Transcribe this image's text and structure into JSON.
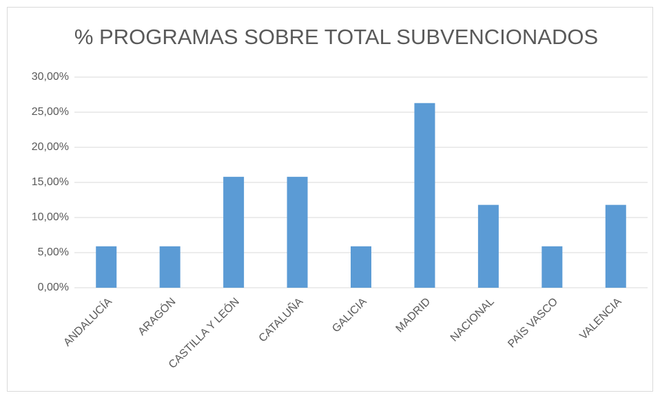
{
  "chart_data": {
    "type": "bar",
    "title": "% PROGRAMAS SOBRE TOTAL SUBVENCIONADOS",
    "categories": [
      "ANDALUCÍA",
      "ARAGÓN",
      "CASTILLA Y LEÓN",
      "CATALUÑA",
      "GALICIA",
      "MADRID",
      "NACIONAL",
      "PAÍS VASCO",
      "VALENCIA"
    ],
    "values": [
      5.9,
      5.9,
      15.8,
      15.8,
      5.9,
      26.3,
      11.8,
      5.9,
      11.8
    ],
    "color": "#5b9bd5",
    "ylim": [
      0,
      30
    ],
    "yticks": [
      {
        "value": 0,
        "label": "0,00%"
      },
      {
        "value": 5,
        "label": "5,00%"
      },
      {
        "value": 10,
        "label": "10,00%"
      },
      {
        "value": 15,
        "label": "15,00%"
      },
      {
        "value": 20,
        "label": "20,00%"
      },
      {
        "value": 25,
        "label": "25,00%"
      },
      {
        "value": 30,
        "label": "30,00%"
      }
    ],
    "grid": true
  }
}
